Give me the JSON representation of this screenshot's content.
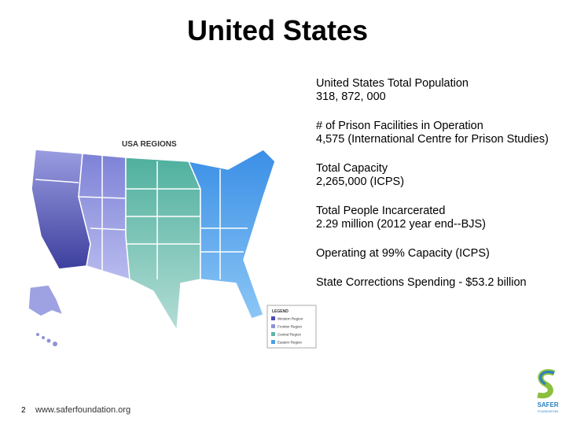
{
  "title": "United States",
  "stats": [
    {
      "label": "United States Total Population",
      "value": "318, 872, 000"
    },
    {
      "label": "# of Prison Facilities in Operation",
      "value": "4,575 (International Centre for Prison Studies)"
    },
    {
      "label": "Total Capacity",
      "value": "2,265,000 (ICPS)"
    },
    {
      "label": "Total People Incarcerated",
      "value": "2.29 million (2012 year end--BJS)"
    },
    {
      "label": "Operating at 99% Capacity (ICPS)"
    },
    {
      "label": "State Corrections Spending - $53.2 billion"
    }
  ],
  "map": {
    "title": "USA REGIONS",
    "legend_title": "LEGEND",
    "legend": [
      "Western Region",
      "Frontier Region",
      "Central Region",
      "Eastern Region"
    ]
  },
  "logo": {
    "name": "SAFER",
    "subtitle": "FOUNDATION"
  },
  "footer": {
    "page": "2",
    "url": "www.saferfoundation.org"
  }
}
